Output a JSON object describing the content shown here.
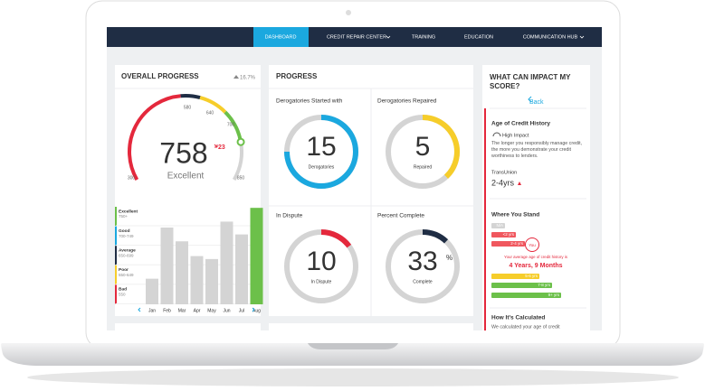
{
  "nav": {
    "items": [
      "DASHBOARD",
      "CREDIT REPAIR CENTER",
      "TRAINING",
      "EDUCATION",
      "COMMUNICATION HUB"
    ]
  },
  "overall": {
    "title": "OVERALL PROGRESS",
    "change": "16.7%",
    "score": "758",
    "score_change": "23",
    "rating": "Excellent",
    "gauge_labels": [
      "300",
      "580",
      "640",
      "700",
      "850"
    ],
    "legend": [
      {
        "label": "Excellent",
        "range": "750+"
      },
      {
        "label": "Good",
        "range": "700-749"
      },
      {
        "label": "Average",
        "range": "650-699"
      },
      {
        "label": "Poor",
        "range": "550-649"
      },
      {
        "label": "Bad",
        "range": "550"
      }
    ],
    "chart": {
      "type": "bar",
      "categories": [
        "Jan",
        "Feb",
        "Mar",
        "Apr",
        "May",
        "Jun",
        "Jul",
        "Aug"
      ],
      "values": [
        26,
        78,
        64,
        49,
        46,
        84,
        71,
        98
      ],
      "ylim": [
        0,
        100
      ],
      "colors": [
        "#d4d4d4",
        "#d4d4d4",
        "#d4d4d4",
        "#d4d4d4",
        "#d4d4d4",
        "#d4d4d4",
        "#d4d4d4",
        "#6cc04a"
      ]
    }
  },
  "progress": {
    "title": "PROGRESS",
    "cards": [
      {
        "title": "Derogatories Started with",
        "value": "15",
        "caption": "Derogatories",
        "percent": 75,
        "color": "#1ba8df"
      },
      {
        "title": "Derogatories Repaired",
        "value": "5",
        "caption": "Repaired",
        "percent": 38,
        "color": "#f6cd2a"
      },
      {
        "title": "In Dispute",
        "value": "10",
        "caption": "In Dispute",
        "percent": 15,
        "color": "#e4283c"
      },
      {
        "title": "Percent Complete",
        "value": "33",
        "unit": "%",
        "caption": "Complete",
        "percent": 12,
        "color": "#1f2d44"
      }
    ]
  },
  "impact": {
    "title": "WHAT CAN IMPACT MY SCORE?",
    "back": "Back",
    "factor": "Age of Credit History",
    "impact": "High Impact",
    "description": "The longer you responsibly manage credit, the more you demonstrate your credit worthiness to lenders.",
    "bureau": "TransUnion",
    "bureau_value": "2-4yrs",
    "stand_title": "Where You Stand",
    "ranges": [
      "N/A",
      "<2 yrs",
      "2-4 yrs",
      "5-6 yrs",
      "7-8 yrs",
      "9+ yrs"
    ],
    "you": "You",
    "you_text": "Your average age of credit history is",
    "you_value": "4 Years, 9 Months",
    "calc_title": "How It's Calculated",
    "calc_text": "We calculated your age of credit"
  }
}
